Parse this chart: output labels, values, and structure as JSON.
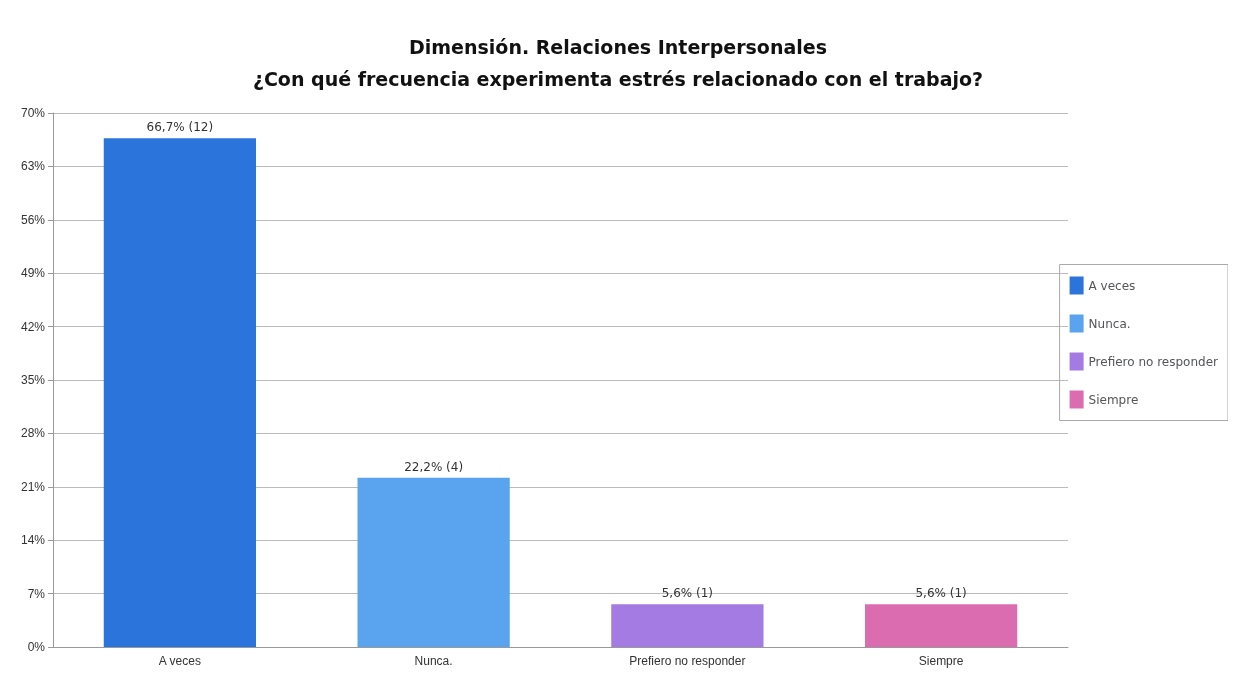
{
  "chart_data": {
    "type": "bar",
    "title": "Dimensión. Relaciones Interpersonales\n¿Con qué frecuencia experimenta estrés relacionado con el trabajo?",
    "categories": [
      "A veces",
      "Nunca.",
      "Prefiero no responder",
      "Siempre"
    ],
    "series": [
      {
        "name": "A veces",
        "color": "#2b74db",
        "values": [
          66.7,
          null,
          null,
          null
        ],
        "value_labels": [
          "66,7% (12)",
          null,
          null,
          null
        ]
      },
      {
        "name": "Nunca.",
        "color": "#5aa3ee",
        "values": [
          null,
          22.2,
          null,
          null
        ],
        "value_labels": [
          null,
          "22,2% (4)",
          null,
          null
        ]
      },
      {
        "name": "Prefiero no responder",
        "color": "#a37be3",
        "values": [
          null,
          null,
          5.6,
          null
        ],
        "value_labels": [
          null,
          null,
          "5,6% (1)",
          null
        ]
      },
      {
        "name": "Siempre",
        "color": "#dc6cb0",
        "values": [
          null,
          null,
          null,
          5.6
        ],
        "value_labels": [
          null,
          null,
          null,
          "5,6% (1)"
        ]
      }
    ],
    "stacked": true,
    "ylim": [
      0,
      70
    ],
    "yticks": [
      {
        "value": 0,
        "label": "0%"
      },
      {
        "value": 7,
        "label": "7%"
      },
      {
        "value": 14,
        "label": "14%"
      },
      {
        "value": 21,
        "label": "21%"
      },
      {
        "value": 28,
        "label": "28%"
      },
      {
        "value": 35,
        "label": "35%"
      },
      {
        "value": 42,
        "label": "42%"
      },
      {
        "value": 49,
        "label": "49%"
      },
      {
        "value": 56,
        "label": "56%"
      },
      {
        "value": 63,
        "label": "63%"
      },
      {
        "value": 70,
        "label": "70%"
      }
    ],
    "grid": "y",
    "legend": "right"
  }
}
